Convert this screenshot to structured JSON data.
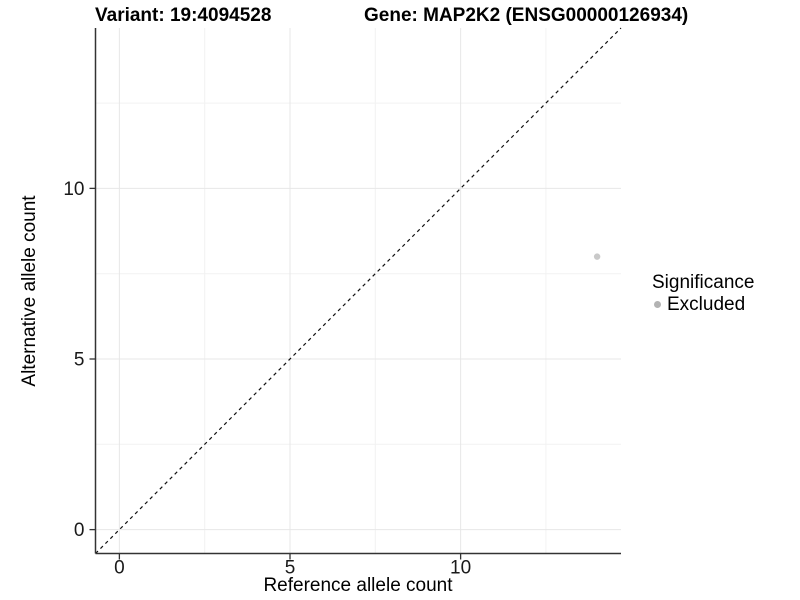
{
  "figure": {
    "title_variant": "Variant: 19:4094528",
    "title_gene": "Gene: MAP2K2 (ENSG00000126934)"
  },
  "chart_data": {
    "type": "scatter",
    "title": "Variant: 19:4094528   Gene: MAP2K2 (ENSG00000126934)",
    "xlabel": "Reference allele count",
    "ylabel": "Alternative allele count",
    "xlim": [
      -0.7,
      14.7
    ],
    "ylim": [
      -0.7,
      14.7
    ],
    "x_major_ticks": [
      0,
      5,
      10
    ],
    "y_major_ticks": [
      0,
      5,
      10
    ],
    "x_minor_ticks": [
      2.5,
      7.5,
      12.5
    ],
    "y_minor_ticks": [
      2.5,
      7.5,
      12.5
    ],
    "grid": "major+minor",
    "points": [
      {
        "x": 14,
        "y": 8,
        "significance": "Excluded"
      }
    ],
    "reference_line": {
      "kind": "identity y=x",
      "style": "dashed"
    },
    "legend": {
      "title": "Significance",
      "position": "right",
      "entries": [
        {
          "label": "Excluded",
          "color": "#b3b3b3"
        }
      ]
    },
    "colors": {
      "point": "#c9c9c9",
      "legend_key": "#b3b3b3",
      "grid_major": "#e7e7e7",
      "grid_minor": "#f2f2f2",
      "axis_line": "#333333",
      "reference_line": "#111111",
      "text": "#000000"
    }
  }
}
